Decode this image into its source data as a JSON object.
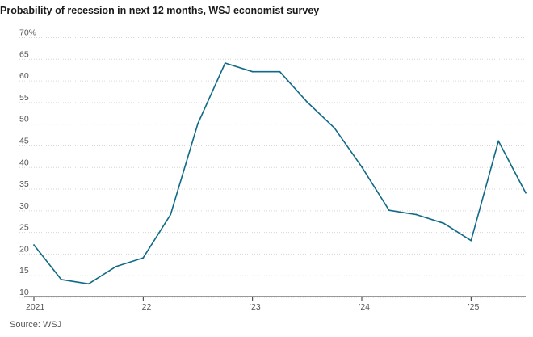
{
  "chart_data": {
    "type": "line",
    "title": "Probability of recession in next 12 months, WSJ economist survey",
    "source": "Source: WSJ",
    "xlabel": "",
    "ylabel": "",
    "ylim": [
      7,
      70
    ],
    "xlim": [
      2021.0,
      2025.5
    ],
    "y_ticks": [
      {
        "value": 70,
        "label": "70%"
      },
      {
        "value": 65,
        "label": "65"
      },
      {
        "value": 60,
        "label": "60"
      },
      {
        "value": 55,
        "label": "55"
      },
      {
        "value": 50,
        "label": "50"
      },
      {
        "value": 45,
        "label": "45"
      },
      {
        "value": 40,
        "label": "40"
      },
      {
        "value": 35,
        "label": "35"
      },
      {
        "value": 30,
        "label": "30"
      },
      {
        "value": 25,
        "label": "25"
      },
      {
        "value": 20,
        "label": "20"
      },
      {
        "value": 15,
        "label": "15"
      },
      {
        "value": 10,
        "label": "10"
      }
    ],
    "x_ticks": [
      {
        "value": 2021,
        "label": "2021"
      },
      {
        "value": 2022,
        "label": "’22"
      },
      {
        "value": 2023,
        "label": "’23"
      },
      {
        "value": 2024,
        "label": "’24"
      },
      {
        "value": 2025,
        "label": "’25"
      }
    ],
    "grid": true,
    "series": [
      {
        "color": "#0f6a86",
        "x": [
          2021.0,
          2021.25,
          2021.5,
          2021.75,
          2022.0,
          2022.25,
          2022.5,
          2022.75,
          2023.0,
          2023.25,
          2023.5,
          2023.75,
          2024.0,
          2024.25,
          2024.5,
          2024.75,
          2025.0,
          2025.25,
          2025.5
        ],
        "values": [
          21,
          13,
          12,
          16,
          18,
          28,
          49,
          63,
          61,
          61,
          54,
          48,
          39,
          29,
          28,
          26,
          22,
          45,
          33
        ]
      }
    ]
  }
}
